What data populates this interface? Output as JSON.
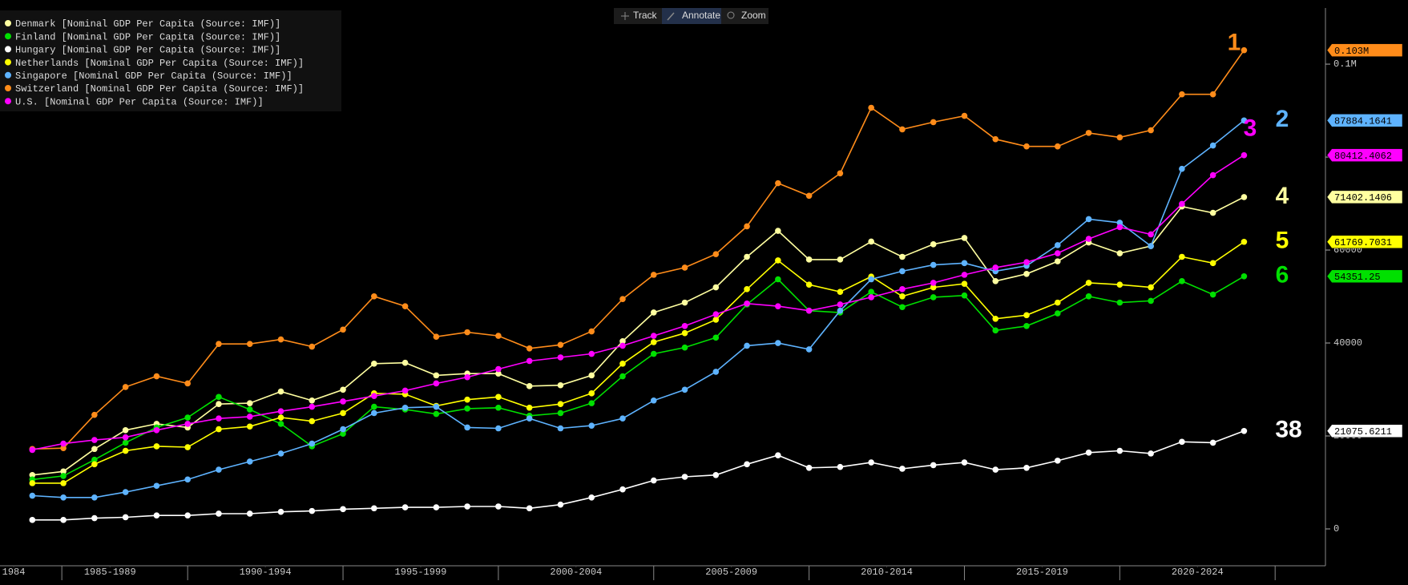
{
  "toolbar": [
    "Track",
    "Annotate",
    "Zoom"
  ],
  "chart_data": {
    "type": "line",
    "x": [
      1985,
      1986,
      1987,
      1988,
      1989,
      1990,
      1991,
      1992,
      1993,
      1994,
      1995,
      1996,
      1997,
      1998,
      1999,
      2000,
      2001,
      2002,
      2003,
      2004,
      2005,
      2006,
      2007,
      2008,
      2009,
      2010,
      2011,
      2012,
      2013,
      2014,
      2015,
      2016,
      2017,
      2018,
      2019,
      2020,
      2021,
      2022,
      2023,
      2024
    ],
    "xlim": [
      1983.96,
      2026.62
    ],
    "xticks": [
      {
        "value": 1984.4,
        "label": "1984"
      },
      {
        "value": 1987.5,
        "label": "1985-1989"
      },
      {
        "value": 1992.5,
        "label": "1990-1994"
      },
      {
        "value": 1997.5,
        "label": "1995-1999"
      },
      {
        "value": 2002.5,
        "label": "2000-2004"
      },
      {
        "value": 2007.5,
        "label": "2005-2009"
      },
      {
        "value": 2012.5,
        "label": "2010-2014"
      },
      {
        "value": 2017.5,
        "label": "2015-2019"
      },
      {
        "value": 2022.5,
        "label": "2020-2024"
      }
    ],
    "ylim": [
      -7930,
      113800
    ],
    "yticks": [
      0,
      20000,
      40000,
      60000,
      80000,
      {
        "value": 100000,
        "label": "0.1M"
      }
    ],
    "legend": "top-left",
    "series": [
      {
        "name": "Denmark [Nominal GDP Per Capita (Source: IMF)]",
        "color": "#ffffa0",
        "rank": "4",
        "values": [
          11590,
          12370,
          17200,
          21250,
          22600,
          21830,
          26860,
          27050,
          29560,
          27630,
          29950,
          35550,
          35740,
          33040,
          33420,
          33420,
          30720,
          30910,
          33040,
          40380,
          46560,
          48690,
          51970,
          58540,
          64140,
          57960,
          57960,
          61820,
          58540,
          61240,
          62600,
          53320,
          54870,
          57570,
          61630,
          59310,
          60860,
          69360,
          68010,
          71402.1406
        ]
      },
      {
        "name": "Finland [Nominal GDP Per Capita (Source: IMF)]",
        "color": "#00e000",
        "rank": "6",
        "values": [
          10630,
          11400,
          14880,
          18550,
          21830,
          23960,
          28400,
          25700,
          22600,
          17770,
          20480,
          26280,
          25700,
          24730,
          25890,
          26080,
          24340,
          24920,
          27050,
          32840,
          37670,
          39030,
          41150,
          48300,
          53710,
          46950,
          46560,
          51010,
          47720,
          49850,
          50230,
          42700,
          43660,
          46370,
          50040,
          48690,
          49070,
          53320,
          50430,
          54351.25
        ]
      },
      {
        "name": "Hungary [Nominal GDP Per Capita (Source: IMF)]",
        "color": "#ffffff",
        "rank": "38",
        "values": [
          1930,
          1930,
          2320,
          2510,
          2900,
          2900,
          3280,
          3280,
          3670,
          3860,
          4250,
          4440,
          4640,
          4640,
          4830,
          4830,
          4440,
          5220,
          6760,
          8500,
          10430,
          11210,
          11590,
          13910,
          15840,
          13140,
          13330,
          14300,
          12940,
          13720,
          14300,
          12750,
          13140,
          14680,
          16420,
          16810,
          16230,
          18740,
          18550,
          21075.6211
        ]
      },
      {
        "name": "Netherlands [Nominal GDP Per Capita (Source: IMF)]",
        "color": "#ffff00",
        "rank": "5",
        "values": [
          9850,
          9850,
          13910,
          16810,
          17770,
          17580,
          21450,
          22030,
          23960,
          23180,
          24920,
          29170,
          28980,
          26470,
          27820,
          28400,
          26080,
          26860,
          29170,
          35550,
          40190,
          42120,
          45020,
          51580,
          57770,
          52550,
          51010,
          54290,
          50040,
          51970,
          52740,
          45210,
          45980,
          48690,
          52940,
          52550,
          51970,
          58540,
          57190,
          61769.7031
        ]
      },
      {
        "name": "Singapore [Nominal GDP Per Capita (Source: IMF)]",
        "color": "#5eb3ff",
        "rank": "2",
        "values": [
          7150,
          6760,
          6760,
          7920,
          9270,
          10630,
          12750,
          14490,
          16230,
          18350,
          21450,
          24920,
          26080,
          26280,
          21830,
          21640,
          23760,
          21640,
          22220,
          23760,
          27630,
          29950,
          33810,
          39410,
          39990,
          38640,
          46950,
          53710,
          55450,
          56800,
          57190,
          55450,
          56610,
          61050,
          66650,
          65880,
          60860,
          77470,
          82500,
          87884.1641
        ]
      },
      {
        "name": "Switzerland [Nominal GDP Per Capita (Source: IMF)]",
        "color": "#ff8c1a",
        "rank": "1",
        "end_label": "0.103M",
        "values": [
          17200,
          17390,
          24540,
          30530,
          32840,
          31300,
          39800,
          39800,
          40770,
          39220,
          42890,
          50040,
          47910,
          41350,
          42310,
          41540,
          38830,
          39610,
          42500,
          49460,
          54680,
          56220,
          59120,
          65110,
          74380,
          71680,
          76510,
          90610,
          85970,
          87520,
          88870,
          83850,
          82300,
          82300,
          85200,
          84240,
          85780,
          93510,
          93510,
          103000
        ]
      },
      {
        "name": "U.S. [Nominal GDP Per Capita (Source: IMF)]",
        "color": "#ff00ff",
        "rank": "3",
        "values": [
          17000,
          18350,
          19130,
          19710,
          21250,
          22600,
          23760,
          24150,
          25310,
          26280,
          27430,
          28590,
          29750,
          31300,
          32650,
          34390,
          36130,
          36900,
          37670,
          39410,
          41540,
          43660,
          46180,
          48490,
          47910,
          46950,
          48300,
          49850,
          51580,
          52940,
          54680,
          56220,
          57380,
          59310,
          62400,
          64920,
          63370,
          69940,
          76120,
          80412.4062
        ]
      }
    ]
  }
}
